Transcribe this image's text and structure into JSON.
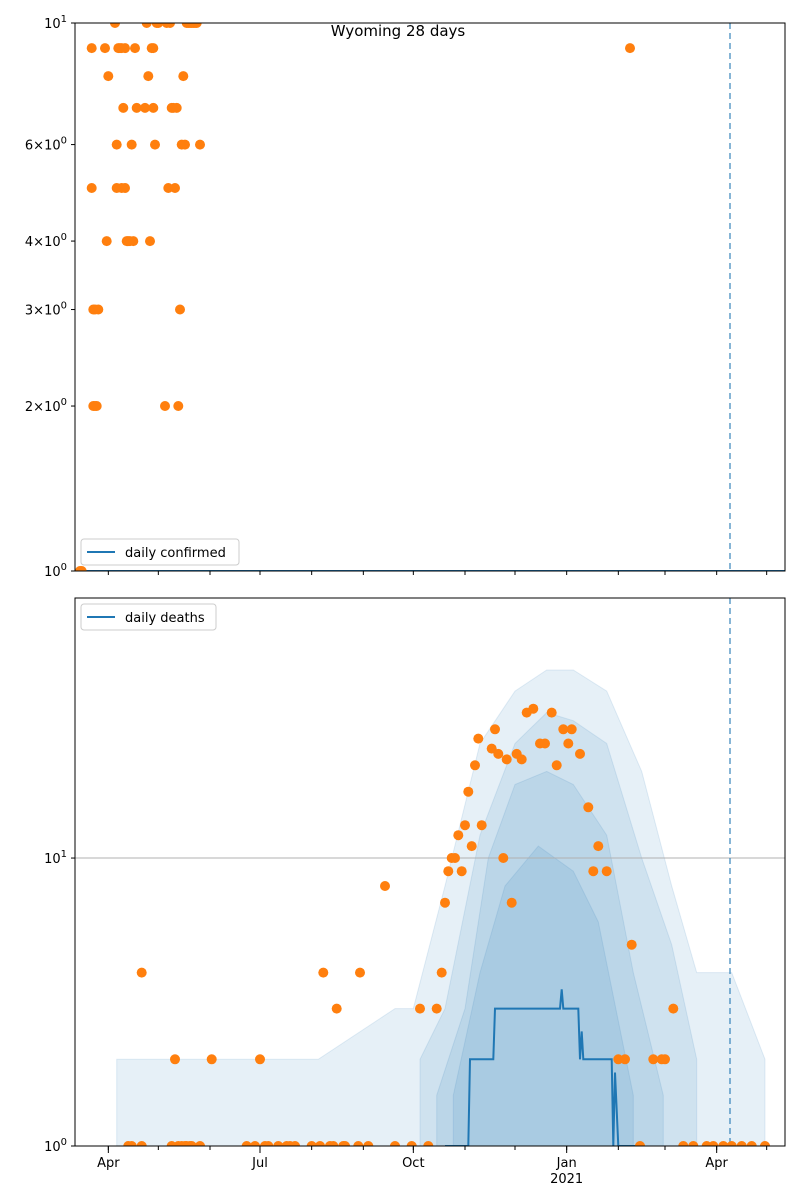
{
  "figure": {
    "title": "Wyoming 28 days"
  },
  "colors": {
    "line": "#1f77b4",
    "points": "#ff7f0e",
    "band": "#1f77b4",
    "vline": "#1f77b4",
    "hline": "#b0b0b0"
  },
  "chart_data": [
    {
      "type": "line",
      "yscale": "log",
      "title": "Wyoming 28 days",
      "legend": {
        "label": "daily confirmed",
        "placement": "bottom-left"
      },
      "xlim": [
        "2020-03-12",
        "2021-05-12"
      ],
      "ylim": [
        1,
        10
      ],
      "yticks": [
        {
          "value": 1,
          "base": "10",
          "exp": "0"
        },
        {
          "value": 2,
          "mant": "2",
          "base": "10",
          "exp": "0"
        },
        {
          "value": 3,
          "mant": "3",
          "base": "10",
          "exp": "0"
        },
        {
          "value": 4,
          "mant": "4",
          "base": "10",
          "exp": "0"
        },
        {
          "value": 6,
          "mant": "6",
          "base": "10",
          "exp": "0"
        },
        {
          "value": 10,
          "base": "10",
          "exp": "1"
        }
      ],
      "vline": "2021-04-09",
      "line_series": {
        "name": "daily confirmed",
        "x": [
          "2020-03-12",
          "2021-05-12"
        ],
        "y": [
          1,
          1
        ]
      },
      "observed": {
        "x": [
          "2020-03-15",
          "2020-03-16",
          "2020-03-22",
          "2020-03-22",
          "2020-03-23",
          "2020-03-23",
          "2020-03-24",
          "2020-03-24",
          "2020-03-25",
          "2020-03-26",
          "2020-03-30",
          "2020-03-31",
          "2020-04-01",
          "2020-04-05",
          "2020-04-06",
          "2020-04-06",
          "2020-04-07",
          "2020-04-08",
          "2020-04-09",
          "2020-04-09",
          "2020-04-10",
          "2020-04-11",
          "2020-04-11",
          "2020-04-12",
          "2020-04-13",
          "2020-04-14",
          "2020-04-15",
          "2020-04-16",
          "2020-04-17",
          "2020-04-18",
          "2020-04-23",
          "2020-04-24",
          "2020-04-25",
          "2020-04-26",
          "2020-04-27",
          "2020-04-28",
          "2020-04-28",
          "2020-04-29",
          "2020-04-30",
          "2020-05-01",
          "2020-05-05",
          "2020-05-06",
          "2020-05-07",
          "2020-05-08",
          "2020-05-09",
          "2020-05-10",
          "2020-05-11",
          "2020-05-12",
          "2020-05-13",
          "2020-05-14",
          "2020-05-15",
          "2020-05-16",
          "2020-05-17",
          "2020-05-18",
          "2020-05-19",
          "2020-05-20",
          "2020-05-21",
          "2020-05-22",
          "2020-05-23",
          "2020-05-24",
          "2020-05-26",
          "2021-02-08"
        ],
        "y": [
          1,
          1,
          9,
          5,
          2,
          3,
          2,
          3,
          2,
          3,
          9,
          4,
          8,
          10,
          6,
          5,
          9,
          9,
          9,
          5,
          7,
          5,
          9,
          4,
          4,
          4,
          6,
          4,
          9,
          7,
          7,
          10,
          8,
          4,
          9,
          9,
          7,
          6,
          10,
          10,
          2,
          10,
          5,
          10,
          7,
          7,
          5,
          7,
          2,
          3,
          6,
          8,
          6,
          10,
          10,
          10,
          10,
          10,
          10,
          10,
          6,
          9
        ]
      }
    },
    {
      "type": "line",
      "yscale": "log",
      "legend": {
        "label": "daily deaths",
        "placement": "top-left"
      },
      "xlim": [
        "2020-03-12",
        "2021-05-12"
      ],
      "ylim": [
        1,
        80
      ],
      "yticks": [
        {
          "value": 1,
          "base": "10",
          "exp": "0"
        },
        {
          "value": 10,
          "base": "10",
          "exp": "1"
        }
      ],
      "xticks": [
        {
          "date": "2020-04-01",
          "label": "Apr"
        },
        {
          "date": "2020-07-01",
          "label": "Jul"
        },
        {
          "date": "2020-10-01",
          "label": "Oct"
        },
        {
          "date": "2021-01-01",
          "label": "Jan",
          "sublabel": "2021"
        },
        {
          "date": "2021-04-01",
          "label": "Apr"
        }
      ],
      "vline": "2021-04-09",
      "hline": 10,
      "line_series": {
        "name": "daily deaths",
        "x": [
          "2020-10-20",
          "2020-11-03",
          "2020-11-04",
          "2020-11-18",
          "2020-11-19",
          "2020-12-03",
          "2020-12-04",
          "2020-12-28",
          "2020-12-29",
          "2020-12-30",
          "2021-01-08",
          "2021-01-09",
          "2021-01-10",
          "2021-01-11",
          "2021-01-12",
          "2021-01-13",
          "2021-01-14",
          "2021-01-28",
          "2021-01-29",
          "2021-01-30",
          "2021-02-01",
          "2021-02-03",
          "2021-02-15"
        ],
        "y": [
          1,
          1,
          2,
          2,
          3,
          3,
          3,
          3,
          3.5,
          3,
          3,
          2,
          2.5,
          2,
          2,
          2,
          2,
          2,
          1,
          1.8,
          1,
          1,
          1
        ]
      },
      "bands": {
        "note": "nested shaded uncertainty intervals (outer to inner)",
        "intervals": [
          {
            "x": [
              "2020-04-06",
              "2020-05-31",
              "2020-08-05",
              "2020-09-20",
              "2020-10-01",
              "2020-10-20",
              "2020-11-10",
              "2020-12-01",
              "2020-12-20",
              "2021-01-05",
              "2021-01-25",
              "2021-02-15",
              "2021-03-05",
              "2021-03-20",
              "2021-04-10",
              "2021-04-30"
            ],
            "lower": [
              1,
              1,
              1,
              1,
              1,
              1,
              1,
              1,
              1,
              1,
              1,
              1,
              1,
              1,
              1,
              1
            ],
            "upper": [
              2,
              2,
              2,
              3,
              3,
              8,
              25,
              38,
              45,
              45,
              38,
              20,
              8,
              4,
              4,
              2
            ]
          },
          {
            "x": [
              "2020-10-05",
              "2020-10-20",
              "2020-11-10",
              "2020-12-01",
              "2020-12-20",
              "2021-01-05",
              "2021-01-25",
              "2021-02-15",
              "2021-03-05",
              "2021-03-20"
            ],
            "lower": [
              1,
              1,
              1,
              1,
              1,
              1,
              1,
              1,
              1,
              1
            ],
            "upper": [
              2,
              3,
              12,
              25,
              32,
              30,
              25,
              10,
              5,
              2
            ]
          },
          {
            "x": [
              "2020-10-15",
              "2020-11-01",
              "2020-11-15",
              "2020-12-01",
              "2020-12-20",
              "2021-01-05",
              "2021-01-25",
              "2021-02-10",
              "2021-02-28"
            ],
            "lower": [
              1,
              1,
              1,
              1,
              1,
              1,
              1,
              1,
              1
            ],
            "upper": [
              1.5,
              3,
              10,
              18,
              20,
              18,
              12,
              4,
              1.5
            ]
          },
          {
            "x": [
              "2020-10-25",
              "2020-11-10",
              "2020-11-25",
              "2020-12-15",
              "2021-01-05",
              "2021-01-20",
              "2021-02-10"
            ],
            "lower": [
              1,
              1,
              1,
              1,
              1,
              1,
              1
            ],
            "upper": [
              1.5,
              4,
              8,
              11,
              9,
              6,
              1.5
            ]
          }
        ]
      },
      "observed": {
        "x": [
          "2020-04-13",
          "2020-04-15",
          "2020-04-21",
          "2020-04-21",
          "2020-05-09",
          "2020-05-11",
          "2020-05-13",
          "2020-05-15",
          "2020-05-17",
          "2020-05-18",
          "2020-05-20",
          "2020-05-21",
          "2020-05-26",
          "2020-06-02",
          "2020-06-23",
          "2020-06-28",
          "2020-07-01",
          "2020-07-04",
          "2020-07-06",
          "2020-07-12",
          "2020-07-17",
          "2020-07-19",
          "2020-07-22",
          "2020-08-01",
          "2020-08-06",
          "2020-08-08",
          "2020-08-12",
          "2020-08-14",
          "2020-08-16",
          "2020-08-20",
          "2020-08-21",
          "2020-08-29",
          "2020-08-30",
          "2020-09-04",
          "2020-09-14",
          "2020-09-20",
          "2020-09-30",
          "2020-10-05",
          "2020-10-10",
          "2020-10-15",
          "2020-10-18",
          "2020-10-20",
          "2020-10-22",
          "2020-10-24",
          "2020-10-26",
          "2020-10-28",
          "2020-10-30",
          "2020-11-01",
          "2020-11-03",
          "2020-11-05",
          "2020-11-07",
          "2020-11-09",
          "2020-11-11",
          "2020-11-17",
          "2020-11-19",
          "2020-11-21",
          "2020-11-24",
          "2020-11-26",
          "2020-11-29",
          "2020-12-02",
          "2020-12-05",
          "2020-12-08",
          "2020-12-12",
          "2020-12-16",
          "2020-12-19",
          "2020-12-23",
          "2020-12-26",
          "2020-12-30",
          "2021-01-02",
          "2021-01-04",
          "2021-01-09",
          "2021-01-14",
          "2021-01-17",
          "2021-01-20",
          "2021-01-25",
          "2021-02-01",
          "2021-02-05",
          "2021-02-09",
          "2021-02-14",
          "2021-02-22",
          "2021-02-27",
          "2021-03-01",
          "2021-03-06",
          "2021-03-12",
          "2021-03-18",
          "2021-03-26",
          "2021-03-30",
          "2021-04-05",
          "2021-04-10",
          "2021-04-16",
          "2021-04-22",
          "2021-04-30"
        ],
        "y": [
          1,
          1,
          1,
          4,
          1,
          2,
          1,
          1,
          1,
          1,
          1,
          1,
          1,
          2,
          1,
          1,
          2,
          1,
          1,
          1,
          1,
          1,
          1,
          1,
          1,
          4,
          1,
          1,
          3,
          1,
          1,
          1,
          4,
          1,
          8,
          1,
          1,
          3,
          1,
          3,
          4,
          7,
          9,
          10,
          10,
          12,
          9,
          13,
          17,
          11,
          21,
          26,
          13,
          24,
          28,
          23,
          10,
          22,
          7,
          23,
          22,
          32,
          33,
          25,
          25,
          32,
          21,
          28,
          25,
          28,
          23,
          15,
          9,
          11,
          9,
          2,
          2,
          5,
          1,
          2,
          2,
          2,
          3,
          1,
          1,
          1,
          1,
          1,
          1,
          1,
          1,
          1
        ]
      }
    }
  ]
}
